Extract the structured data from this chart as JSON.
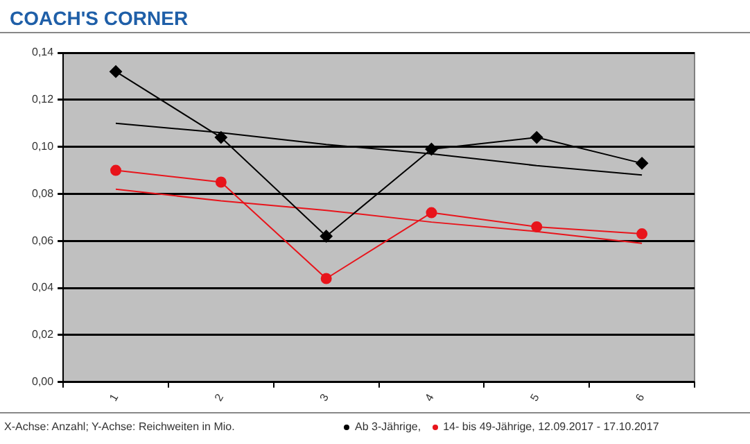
{
  "chart_data": {
    "type": "line",
    "title": "COACH'S CORNER",
    "categories": [
      "1",
      "2",
      "3",
      "4",
      "5",
      "6"
    ],
    "series": [
      {
        "name": "Ab 3-Jährige,",
        "color": "#000000",
        "marker": "diamond",
        "values": [
          0.132,
          0.104,
          0.062,
          0.099,
          0.104,
          0.093
        ]
      },
      {
        "name": "14- bis 49-Jährige, 12.09.2017 - 17.10.2017",
        "color": "#e8141b",
        "marker": "circle",
        "values": [
          0.09,
          0.085,
          0.044,
          0.072,
          0.066,
          0.063
        ]
      },
      {
        "color": "#000000",
        "marker": "none",
        "values": [
          0.11,
          0.106,
          0.101,
          0.097,
          0.092,
          0.088
        ]
      },
      {
        "color": "#e8141b",
        "marker": "none",
        "values": [
          0.082,
          0.077,
          0.073,
          0.068,
          0.064,
          0.059
        ]
      }
    ],
    "ylim": [
      0,
      0.14
    ],
    "yticks": [
      {
        "value": 0,
        "label": "0,00"
      },
      {
        "value": 0.02,
        "label": "0,02"
      },
      {
        "value": 0.04,
        "label": "0,04"
      },
      {
        "value": 0.06,
        "label": "0,06"
      },
      {
        "value": 0.08,
        "label": "0,08"
      },
      {
        "value": 0.1,
        "label": "0,10"
      },
      {
        "value": 0.12,
        "label": "0,12"
      },
      {
        "value": 0.14,
        "label": "0,14"
      }
    ],
    "grid": "y",
    "legend": "bottom right",
    "annotations": [
      "X-Achse: Anzahl; Y-Achse: Reichweiten in Mio."
    ]
  }
}
